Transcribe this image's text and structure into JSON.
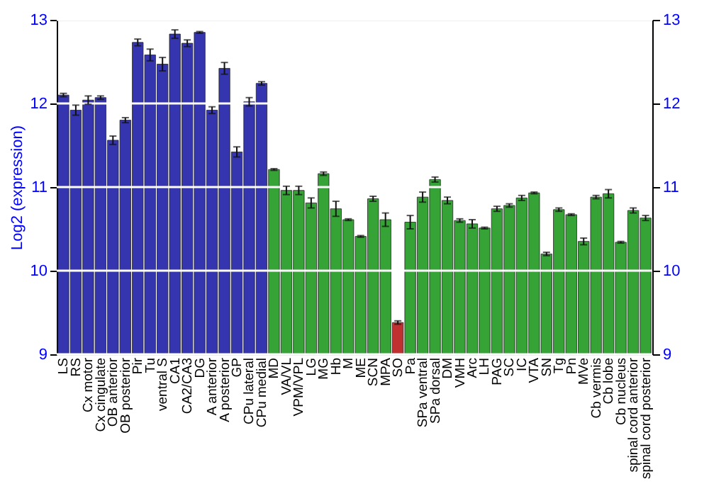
{
  "chart_data": {
    "type": "bar",
    "ylabel": "Log2 (expression)",
    "categories": [
      "LS",
      "RS",
      "Cx motor",
      "Cx cingulate",
      "OB anterior",
      "OB posterior",
      "Pir",
      "Tu",
      "ventral S",
      "CA1",
      "CA2/CA3",
      "DG",
      "A anterior",
      "A posterior",
      "GP",
      "CPu lateral",
      "CPu medial",
      "MD",
      "VA/VL",
      "VPM/VPL",
      "LG",
      "MG",
      "Hb",
      "M",
      "ME",
      "SCN",
      "MPA",
      "SO",
      "Pa",
      "SPa ventral",
      "SPa dorsal",
      "DM",
      "VMH",
      "Arc",
      "LH",
      "PAG",
      "SC",
      "IC",
      "VTA",
      "SN",
      "Tg",
      "Pn",
      "MVe",
      "Cb vermis",
      "Cb lobe",
      "Cb nucleus",
      "spinal cord anterior",
      "spinal cord posterior"
    ],
    "values": [
      12.1,
      11.92,
      12.04,
      12.07,
      11.56,
      11.8,
      12.73,
      12.58,
      12.47,
      12.83,
      12.72,
      12.85,
      11.92,
      12.42,
      11.42,
      12.02,
      12.24,
      11.21,
      10.96,
      10.96,
      10.81,
      11.16,
      10.74,
      10.61,
      10.41,
      10.86,
      10.61,
      9.38,
      10.58,
      10.88,
      11.09,
      10.84,
      10.6,
      10.56,
      10.51,
      10.74,
      10.78,
      10.87,
      10.93,
      10.2,
      10.73,
      10.67,
      10.35,
      10.88,
      10.92,
      10.34,
      10.72,
      10.63
    ],
    "errors": [
      0.02,
      0.06,
      0.05,
      0.02,
      0.05,
      0.03,
      0.04,
      0.07,
      0.08,
      0.05,
      0.04,
      0.01,
      0.04,
      0.07,
      0.06,
      0.05,
      0.02,
      0.01,
      0.05,
      0.05,
      0.06,
      0.02,
      0.09,
      0.01,
      0.01,
      0.03,
      0.08,
      0.02,
      0.08,
      0.06,
      0.03,
      0.04,
      0.02,
      0.05,
      0.01,
      0.03,
      0.02,
      0.03,
      0.01,
      0.02,
      0.02,
      0.01,
      0.04,
      0.02,
      0.05,
      0.01,
      0.03,
      0.03
    ],
    "colors": [
      "#3535b0",
      "#3535b0",
      "#3535b0",
      "#3535b0",
      "#3535b0",
      "#3535b0",
      "#3535b0",
      "#3535b0",
      "#3535b0",
      "#3535b0",
      "#3535b0",
      "#3535b0",
      "#3535b0",
      "#3535b0",
      "#3535b0",
      "#3535b0",
      "#3535b0",
      "#35a335",
      "#35a335",
      "#35a335",
      "#35a335",
      "#35a335",
      "#35a335",
      "#35a335",
      "#35a335",
      "#35a335",
      "#35a335",
      "#c03030",
      "#35a335",
      "#35a335",
      "#35a335",
      "#35a335",
      "#35a335",
      "#35a335",
      "#35a335",
      "#35a335",
      "#35a335",
      "#35a335",
      "#35a335",
      "#35a335",
      "#35a335",
      "#35a335",
      "#35a335",
      "#35a335",
      "#35a335",
      "#35a335",
      "#35a335",
      "#35a335"
    ],
    "ylim": [
      9,
      13
    ],
    "yticks": [
      9,
      10,
      11,
      12,
      13
    ],
    "y2lim": [
      9,
      13
    ],
    "y2ticks": [
      9,
      10,
      11,
      12,
      13
    ],
    "grid": "y"
  }
}
